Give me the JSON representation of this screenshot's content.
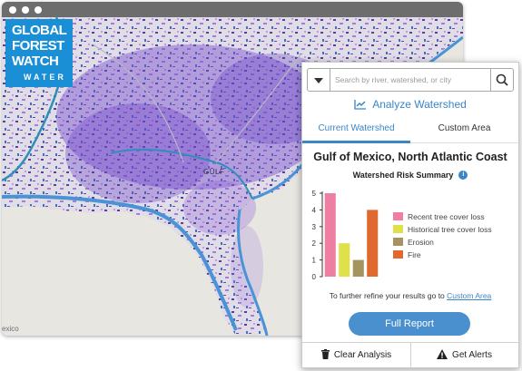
{
  "logo": {
    "line1": "GLOBAL",
    "line2": "FOREST",
    "line3": "WATCH",
    "line4": "WATER"
  },
  "map": {
    "labels": {
      "gulf": "GULF",
      "mexico": "exico"
    },
    "colors": {
      "land": "#e2dfe6",
      "coverage": "#7b4fd0",
      "water": "#5b9fd8",
      "ocean": "#e8e6e0"
    }
  },
  "panel": {
    "search": {
      "placeholder": "Search by river, watershed, or city"
    },
    "analyze_label": "Analyze Watershed",
    "tabs": [
      {
        "label": "Current Watershed",
        "active": true
      },
      {
        "label": "Custom Area",
        "active": false
      }
    ],
    "watershed_name": "Gulf of Mexico, North Atlantic Coast",
    "risk_summary_title": "Watershed Risk Summary",
    "info_glyph": "i",
    "refine_text": "To further refine your results go to",
    "refine_link": "Custom Area",
    "full_report_label": "Full Report",
    "footer": {
      "clear_label": "Clear Analysis",
      "alerts_label": "Get Alerts"
    },
    "accent_color": "#3a86c8"
  },
  "chart_data": {
    "type": "bar",
    "categories": [
      "Recent tree cover loss",
      "Historical tree cover loss",
      "Erosion",
      "Fire"
    ],
    "values": [
      5,
      2,
      1,
      4
    ],
    "colors": [
      "#ef7ea3",
      "#dfe04a",
      "#a59360",
      "#e0692f"
    ],
    "yticks": [
      0,
      1,
      2,
      3,
      4,
      5
    ],
    "ylim": [
      0,
      5
    ],
    "title": "Watershed Risk Summary",
    "legend_position": "right"
  }
}
